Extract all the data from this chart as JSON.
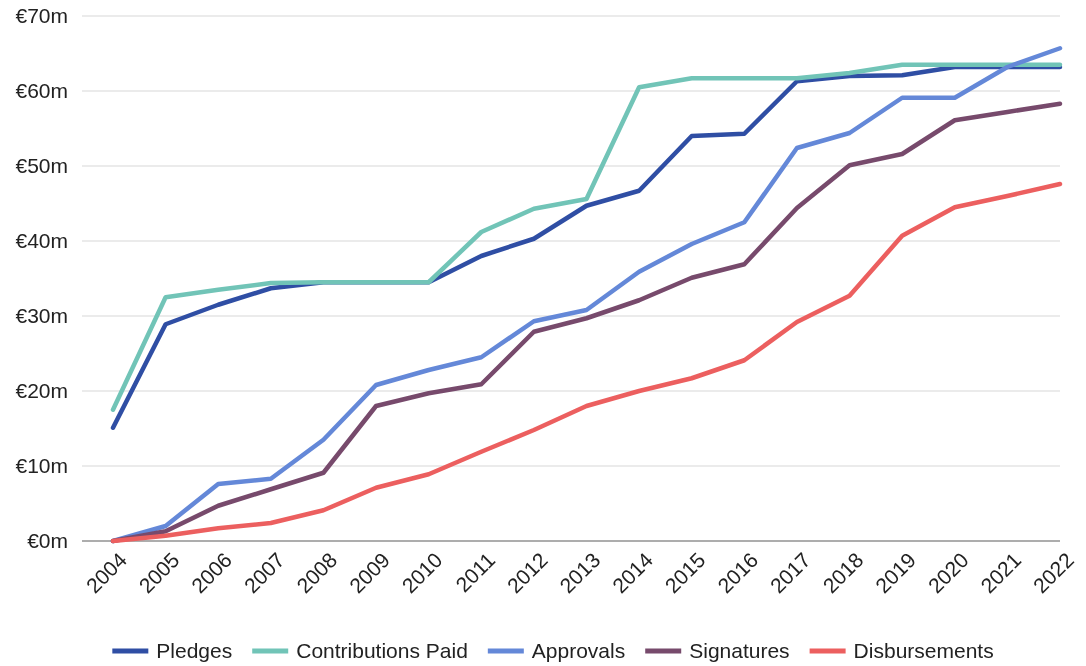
{
  "chart_data": {
    "type": "line",
    "categories": [
      "2004",
      "2005",
      "2006",
      "2007",
      "2008",
      "2009",
      "2010",
      "2011",
      "2012",
      "2013",
      "2014",
      "2015",
      "2016",
      "2017",
      "2018",
      "2019",
      "2020",
      "2021",
      "2022"
    ],
    "series": [
      {
        "name": "Pledges",
        "color": "#2f4ea4",
        "values": [
          15.1,
          28.9,
          31.5,
          33.7,
          34.5,
          34.5,
          34.5,
          38.0,
          40.3,
          44.7,
          46.7,
          54.0,
          54.3,
          61.3,
          62.0,
          62.1,
          63.2,
          63.2,
          63.2
        ]
      },
      {
        "name": "Contributions Paid",
        "color": "#71c4b7",
        "values": [
          17.5,
          32.5,
          33.5,
          34.4,
          34.5,
          34.5,
          34.5,
          41.2,
          44.3,
          45.6,
          60.5,
          61.7,
          61.7,
          61.7,
          62.4,
          63.5,
          63.5,
          63.5,
          63.5
        ]
      },
      {
        "name": "Approvals",
        "color": "#6488d8",
        "values": [
          0,
          2.0,
          7.6,
          8.3,
          13.5,
          20.8,
          22.8,
          24.5,
          29.3,
          30.8,
          35.9,
          39.6,
          42.5,
          52.4,
          54.4,
          59.1,
          59.1,
          63.2,
          65.7
        ]
      },
      {
        "name": "Signatures",
        "color": "#774a6c",
        "values": [
          0,
          1.3,
          4.7,
          6.9,
          9.1,
          18.0,
          19.7,
          20.9,
          27.9,
          29.7,
          32.1,
          35.1,
          36.9,
          44.4,
          50.1,
          51.6,
          56.1,
          57.2,
          58.3
        ]
      },
      {
        "name": "Disbursements",
        "color": "#ec5f5f",
        "values": [
          0,
          0.7,
          1.7,
          2.4,
          4.1,
          7.1,
          8.9,
          11.9,
          14.8,
          18.0,
          20.0,
          21.7,
          24.1,
          29.2,
          32.7,
          40.7,
          44.5,
          46.0,
          47.6
        ]
      }
    ],
    "ylim": [
      0,
      70
    ],
    "yticks": [
      {
        "value": 0,
        "label": "€0m"
      },
      {
        "value": 10,
        "label": "€10m"
      },
      {
        "value": 20,
        "label": "€20m"
      },
      {
        "value": 30,
        "label": "€30m"
      },
      {
        "value": 40,
        "label": "€40m"
      },
      {
        "value": 50,
        "label": "€50m"
      },
      {
        "value": 60,
        "label": "€60m"
      },
      {
        "value": 70,
        "label": "€70m"
      }
    ],
    "grid": "y",
    "legend": "bottom",
    "marker": "none",
    "line_style": "solid"
  }
}
